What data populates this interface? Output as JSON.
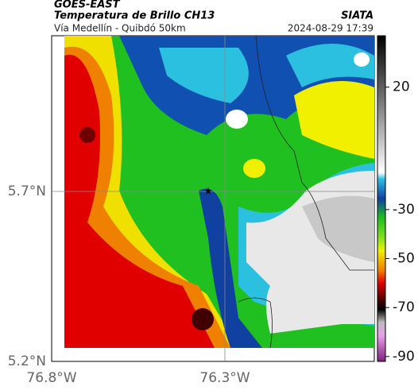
{
  "header": {
    "title": "GOES-EAST",
    "subtitle": "Temperatura de Brillo CH13",
    "location": "Vía Medellín - Quibdó 50km",
    "source": "SIATA",
    "datetime": "2024-08-29 17:39"
  },
  "axes": {
    "lat_labels": [
      "5.7°N",
      "5.2°N"
    ],
    "lon_labels": [
      "76.8°W",
      "76.3°W"
    ]
  },
  "colorbar": {
    "range": [
      -92,
      41
    ],
    "ticks": [
      20,
      -30,
      -50,
      -70,
      -90
    ]
  }
}
